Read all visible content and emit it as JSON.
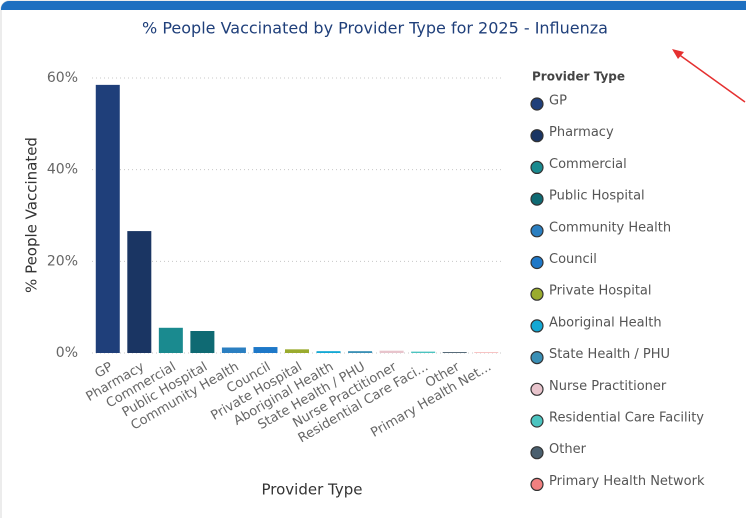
{
  "chart_data": {
    "type": "bar",
    "title": "% People Vaccinated by Provider Type for 2025 - Influenza",
    "y_axis_label": "% People Vaccinated",
    "x_axis_label": "Provider Type",
    "legend_title": "Provider Type",
    "categories": [
      "GP",
      "Pharmacy",
      "Commercial",
      "Public Hospital",
      "Community Health",
      "Council",
      "Private Hospital",
      "Aboriginal Health",
      "State Health / PHU",
      "Nurse Practitioner",
      "Residential Care Facility",
      "Other",
      "Primary Health Network"
    ],
    "category_labels": [
      "GP",
      "Pharmacy",
      "Commercial",
      "Public Hospital",
      "Community Health",
      "Council",
      "Private Hospital",
      "Aboriginal Health",
      "State Health / PHU",
      "Nurse Practitioner",
      "Residential Care Faci...",
      "Other",
      "Primary Health Net..."
    ],
    "values": [
      58.5,
      26.6,
      5.5,
      4.8,
      1.2,
      1.3,
      0.8,
      0.4,
      0.4,
      0.5,
      0.3,
      0.2,
      0.1
    ],
    "colors": [
      "#1f3f7a",
      "#1a3563",
      "#1a8a8f",
      "#0f6a73",
      "#2b7fc1",
      "#1e78c8",
      "#9aab2e",
      "#13a8d4",
      "#3a8fb5",
      "#e8c4cc",
      "#4cc4c0",
      "#4a5f6e",
      "#f08080"
    ],
    "ylim": [
      0,
      60
    ],
    "yticks": [
      {
        "value": 0,
        "label": "0%"
      },
      {
        "value": 20,
        "label": "20%"
      },
      {
        "value": 40,
        "label": "40%"
      },
      {
        "value": 60,
        "label": "60%"
      }
    ],
    "grid": true
  }
}
